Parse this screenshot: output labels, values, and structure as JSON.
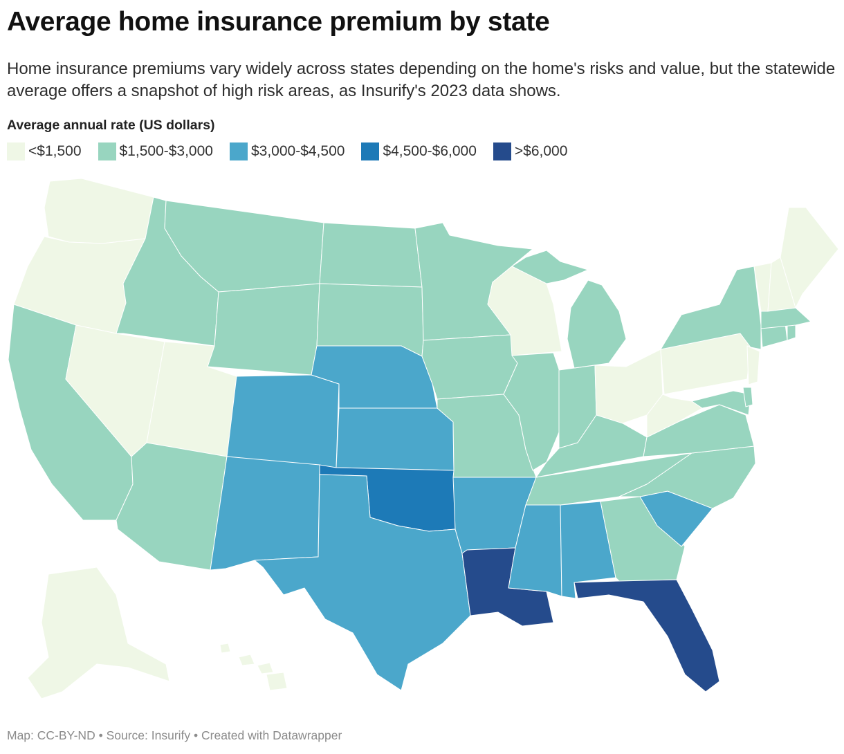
{
  "header": {
    "title": "Average home insurance premium by state",
    "subtitle": "Home insurance premiums vary widely across states depending on the home's risks and value, but the statewide average offers a snapshot of high risk areas, as Insurify's 2023 data shows."
  },
  "legend": {
    "title": "Average annual rate (US dollars)",
    "bins": [
      {
        "label": "<$1,500",
        "color": "#eff7e6"
      },
      {
        "label": "$1,500-$3,000",
        "color": "#98d5bf"
      },
      {
        "label": "$3,000-$4,500",
        "color": "#4ba7cb"
      },
      {
        "label": "$4,500-$6,000",
        "color": "#1d7ab7"
      },
      {
        "label": ">$6,000",
        "color": "#254b8c"
      }
    ]
  },
  "footer": {
    "text": "Map: CC-BY-ND • Source: Insurify • Created with Datawrapper"
  },
  "map_data": {
    "type": "choropleth",
    "region": "United States",
    "states": {
      "WA": "<$1,500",
      "OR": "<$1,500",
      "NV": "<$1,500",
      "UT": "<$1,500",
      "WI": "<$1,500",
      "OH": "<$1,500",
      "PA": "<$1,500",
      "WV": "<$1,500",
      "NJ": "<$1,500",
      "VT": "<$1,500",
      "NH": "<$1,500",
      "ME": "<$1,500",
      "AK": "<$1,500",
      "HI": "<$1,500",
      "CA": "$1,500-$3,000",
      "ID": "$1,500-$3,000",
      "MT": "$1,500-$3,000",
      "WY": "$1,500-$3,000",
      "ND": "$1,500-$3,000",
      "SD": "$1,500-$3,000",
      "MN": "$1,500-$3,000",
      "IA": "$1,500-$3,000",
      "MO": "$1,500-$3,000",
      "IL": "$1,500-$3,000",
      "IN": "$1,500-$3,000",
      "MI": "$1,500-$3,000",
      "KY": "$1,500-$3,000",
      "TN": "$1,500-$3,000",
      "VA": "$1,500-$3,000",
      "NC": "$1,500-$3,000",
      "GA": "$1,500-$3,000",
      "AZ": "$1,500-$3,000",
      "NY": "$1,500-$3,000",
      "MA": "$1,500-$3,000",
      "CT": "$1,500-$3,000",
      "RI": "$1,500-$3,000",
      "MD": "$1,500-$3,000",
      "DE": "$1,500-$3,000",
      "CO": "$3,000-$4,500",
      "NM": "$3,000-$4,500",
      "NE": "$3,000-$4,500",
      "KS": "$3,000-$4,500",
      "TX": "$3,000-$4,500",
      "AR": "$3,000-$4,500",
      "MS": "$3,000-$4,500",
      "AL": "$3,000-$4,500",
      "SC": "$3,000-$4,500",
      "OK": "$4,500-$6,000",
      "LA": ">$6,000",
      "FL": ">$6,000"
    }
  }
}
